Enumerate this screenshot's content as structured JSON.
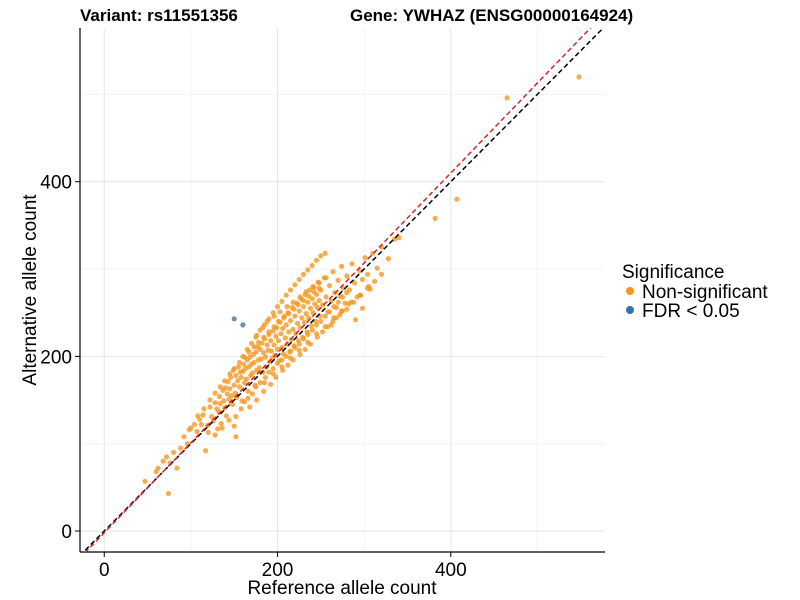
{
  "chart_data": {
    "type": "scatter",
    "title_variant": "Variant: rs11551356",
    "title_gene": "Gene: YWHAZ (ENSG00000164924)",
    "xlabel": "Reference allele count",
    "ylabel": "Alternative allele count",
    "xlim": [
      -28,
      578
    ],
    "ylim": [
      -24,
      576
    ],
    "x_ticks": [
      0,
      200,
      400
    ],
    "y_ticks": [
      0,
      200,
      400
    ],
    "grid": true,
    "reference_lines": [
      {
        "name": "identity",
        "style": "dashed",
        "color": "#000000",
        "slope": 1.0,
        "intercept": 0
      },
      {
        "name": "fit",
        "style": "dashed",
        "color": "#d62728",
        "slope": 1.03,
        "intercept": -2
      }
    ],
    "legend": {
      "title": "Significance",
      "position": "right",
      "items": [
        {
          "label": "Non-significant",
          "color": "#f5961e"
        },
        {
          "label": "FDR < 0.05",
          "color": "#3f6fa8"
        }
      ]
    },
    "series": [
      {
        "name": "Non-significant",
        "color": "#f5961e",
        "points": [
          [
            47,
            57
          ],
          [
            60,
            68
          ],
          [
            62,
            72
          ],
          [
            68,
            80
          ],
          [
            72,
            85
          ],
          [
            74,
            43
          ],
          [
            76,
            78
          ],
          [
            80,
            90
          ],
          [
            84,
            72
          ],
          [
            88,
            95
          ],
          [
            92,
            108
          ],
          [
            96,
            100
          ],
          [
            98,
            116
          ],
          [
            100,
            118
          ],
          [
            104,
            122
          ],
          [
            107,
            114
          ],
          [
            110,
            128
          ],
          [
            112,
            122
          ],
          [
            114,
            133
          ],
          [
            117,
            92
          ],
          [
            119,
            121
          ],
          [
            120,
            113
          ],
          [
            122,
            142
          ],
          [
            124,
            131
          ],
          [
            126,
            126
          ],
          [
            128,
            147
          ],
          [
            130,
            140
          ],
          [
            131,
            117
          ],
          [
            132,
            137
          ],
          [
            133,
            154
          ],
          [
            134,
            146
          ],
          [
            135,
            123
          ],
          [
            137,
            161
          ],
          [
            138,
            149
          ],
          [
            139,
            141
          ],
          [
            140,
            164
          ],
          [
            141,
            132
          ],
          [
            142,
            157
          ],
          [
            143,
            171
          ],
          [
            144,
            151
          ],
          [
            145,
            163
          ],
          [
            146,
            176
          ],
          [
            147,
            155
          ],
          [
            148,
            145
          ],
          [
            149,
            184
          ],
          [
            150,
            167
          ],
          [
            151,
            158
          ],
          [
            152,
            178
          ],
          [
            153,
            153
          ],
          [
            154,
            172
          ],
          [
            155,
            188
          ],
          [
            156,
            165
          ],
          [
            157,
            182
          ],
          [
            158,
            176
          ],
          [
            159,
            149
          ],
          [
            160,
            183
          ],
          [
            161,
            191
          ],
          [
            162,
            170
          ],
          [
            163,
            186
          ],
          [
            164,
            174
          ],
          [
            165,
            196
          ],
          [
            166,
            160
          ],
          [
            167,
            188
          ],
          [
            168,
            199
          ],
          [
            169,
            178
          ],
          [
            170,
            191
          ],
          [
            171,
            181
          ],
          [
            172,
            202
          ],
          [
            173,
            193
          ],
          [
            174,
            167
          ],
          [
            175,
            205
          ],
          [
            176,
            184
          ],
          [
            177,
            211
          ],
          [
            178,
            196
          ],
          [
            179,
            187
          ],
          [
            180,
            208
          ],
          [
            181,
            197
          ],
          [
            182,
            215
          ],
          [
            183,
            182
          ],
          [
            184,
            204
          ],
          [
            185,
            220
          ],
          [
            186,
            199
          ],
          [
            187,
            188
          ],
          [
            188,
            213
          ],
          [
            189,
            207
          ],
          [
            190,
            225
          ],
          [
            191,
            194
          ],
          [
            192,
            218
          ],
          [
            193,
            206
          ],
          [
            194,
            198
          ],
          [
            195,
            229
          ],
          [
            196,
            213
          ],
          [
            197,
            201
          ],
          [
            198,
            223
          ],
          [
            199,
            233
          ],
          [
            200,
            208
          ],
          [
            201,
            218
          ],
          [
            202,
            195
          ],
          [
            203,
            239
          ],
          [
            204,
            226
          ],
          [
            205,
            210
          ],
          [
            206,
            232
          ],
          [
            207,
            203
          ],
          [
            208,
            246
          ],
          [
            209,
            221
          ],
          [
            210,
            236
          ],
          [
            211,
            214
          ],
          [
            212,
            250
          ],
          [
            213,
            228
          ],
          [
            214,
            205
          ],
          [
            215,
            241
          ],
          [
            216,
            219
          ],
          [
            217,
            256
          ],
          [
            218,
            231
          ],
          [
            219,
            212
          ],
          [
            220,
            246
          ],
          [
            221,
            226
          ],
          [
            222,
            261
          ],
          [
            223,
            238
          ],
          [
            224,
            218
          ],
          [
            225,
            252
          ],
          [
            226,
            233
          ],
          [
            227,
            266
          ],
          [
            228,
            244
          ],
          [
            229,
            222
          ],
          [
            230,
            257
          ],
          [
            231,
            239
          ],
          [
            232,
            271
          ],
          [
            233,
            249
          ],
          [
            234,
            228
          ],
          [
            235,
            262
          ],
          [
            236,
            244
          ],
          [
            237,
            276
          ],
          [
            238,
            255
          ],
          [
            239,
            235
          ],
          [
            240,
            266
          ],
          [
            241,
            250
          ],
          [
            242,
            279
          ],
          [
            243,
            260
          ],
          [
            244,
            240
          ],
          [
            245,
            271
          ],
          [
            246,
            256
          ],
          [
            247,
            285
          ],
          [
            248,
            264
          ],
          [
            249,
            246
          ],
          [
            250,
            276
          ],
          [
            252,
            259
          ],
          [
            254,
            290
          ],
          [
            256,
            268
          ],
          [
            258,
            251
          ],
          [
            260,
            281
          ],
          [
            262,
            263
          ],
          [
            264,
            297
          ],
          [
            266,
            273
          ],
          [
            268,
            256
          ],
          [
            270,
            287
          ],
          [
            272,
            269
          ],
          [
            274,
            303
          ],
          [
            276,
            278
          ],
          [
            278,
            261
          ],
          [
            280,
            292
          ],
          [
            283,
            276
          ],
          [
            286,
            306
          ],
          [
            289,
            284
          ],
          [
            292,
            268
          ],
          [
            295,
            298
          ],
          [
            298,
            288
          ],
          [
            301,
            313
          ],
          [
            304,
            294
          ],
          [
            307,
            277
          ],
          [
            310,
            318
          ],
          [
            315,
            301
          ],
          [
            320,
            325
          ],
          [
            328,
            312
          ],
          [
            335,
            334
          ],
          [
            340,
            336
          ],
          [
            150,
            120
          ],
          [
            152,
            131
          ],
          [
            158,
            140
          ],
          [
            162,
            148
          ],
          [
            166,
            152
          ],
          [
            171,
            157
          ],
          [
            175,
            165
          ],
          [
            180,
            170
          ],
          [
            186,
            176
          ],
          [
            190,
            182
          ],
          [
            195,
            186
          ],
          [
            200,
            192
          ],
          [
            205,
            196
          ],
          [
            210,
            200
          ],
          [
            215,
            206
          ],
          [
            220,
            210
          ],
          [
            225,
            214
          ],
          [
            230,
            220
          ],
          [
            235,
            225
          ],
          [
            240,
            230
          ],
          [
            245,
            236
          ],
          [
            250,
            240
          ],
          [
            255,
            246
          ],
          [
            260,
            251
          ],
          [
            265,
            257
          ],
          [
            270,
            262
          ],
          [
            275,
            268
          ],
          [
            280,
            273
          ],
          [
            160,
            200
          ],
          [
            165,
            208
          ],
          [
            170,
            215
          ],
          [
            175,
            222
          ],
          [
            180,
            230
          ],
          [
            185,
            236
          ],
          [
            190,
            243
          ],
          [
            195,
            250
          ],
          [
            200,
            257
          ],
          [
            205,
            263
          ],
          [
            210,
            270
          ],
          [
            215,
            276
          ],
          [
            220,
            282
          ],
          [
            225,
            288
          ],
          [
            230,
            294
          ],
          [
            235,
            299
          ],
          [
            240,
            304
          ],
          [
            245,
            310
          ],
          [
            250,
            315
          ],
          [
            255,
            318
          ],
          [
            382,
            358
          ],
          [
            407,
            380
          ],
          [
            465,
            496
          ],
          [
            548,
            520
          ],
          [
            108,
            132
          ],
          [
            115,
            140
          ],
          [
            128,
            110
          ],
          [
            136,
            118
          ],
          [
            144,
            127
          ],
          [
            152,
            108
          ],
          [
            168,
            142
          ],
          [
            176,
            150
          ],
          [
            184,
            160
          ],
          [
            192,
            168
          ],
          [
            198,
            176
          ],
          [
            206,
            184
          ],
          [
            212,
            190
          ],
          [
            218,
            196
          ],
          [
            226,
            202
          ],
          [
            232,
            208
          ],
          [
            238,
            214
          ],
          [
            246,
            222
          ],
          [
            252,
            228
          ],
          [
            258,
            234
          ],
          [
            264,
            240
          ],
          [
            272,
            248
          ],
          [
            280,
            254
          ],
          [
            288,
            262
          ],
          [
            296,
            270
          ],
          [
            304,
            278
          ],
          [
            312,
            286
          ],
          [
            320,
            294
          ],
          [
            262,
            236
          ],
          [
            268,
            244
          ],
          [
            274,
            252
          ],
          [
            282,
            260
          ],
          [
            290,
            242
          ],
          [
            298,
            255
          ],
          [
            176,
            224
          ],
          [
            183,
            233
          ],
          [
            188,
            240
          ],
          [
            196,
            246
          ],
          [
            203,
            251
          ],
          [
            211,
            257
          ],
          [
            218,
            262
          ],
          [
            226,
            268
          ],
          [
            233,
            274
          ],
          [
            241,
            280
          ],
          [
            248,
            284
          ],
          [
            256,
            290
          ],
          [
            122,
            150
          ],
          [
            128,
            158
          ],
          [
            134,
            165
          ],
          [
            139,
            172
          ],
          [
            145,
            180
          ],
          [
            150,
            186
          ],
          [
            156,
            193
          ],
          [
            162,
            199
          ],
          [
            167,
            205
          ],
          [
            173,
            211
          ],
          [
            178,
            216
          ],
          [
            184,
            222
          ],
          [
            190,
            228
          ],
          [
            196,
            234
          ],
          [
            201,
            240
          ],
          [
            207,
            244
          ],
          [
            213,
            249
          ],
          [
            219,
            254
          ],
          [
            224,
            259
          ],
          [
            230,
            264
          ],
          [
            236,
            269
          ],
          [
            242,
            274
          ],
          [
            248,
            278
          ],
          [
            185,
            170
          ],
          [
            195,
            180
          ],
          [
            205,
            188
          ],
          [
            215,
            198
          ],
          [
            225,
            207
          ],
          [
            235,
            216
          ],
          [
            245,
            226
          ],
          [
            255,
            234
          ],
          [
            265,
            244
          ],
          [
            275,
            252
          ],
          [
            285,
            262
          ],
          [
            295,
            270
          ],
          [
            305,
            280
          ]
        ]
      },
      {
        "name": "FDR < 0.05",
        "color": "#3f6fa8",
        "points": [
          [
            150,
            243
          ],
          [
            160,
            236
          ]
        ]
      }
    ]
  }
}
